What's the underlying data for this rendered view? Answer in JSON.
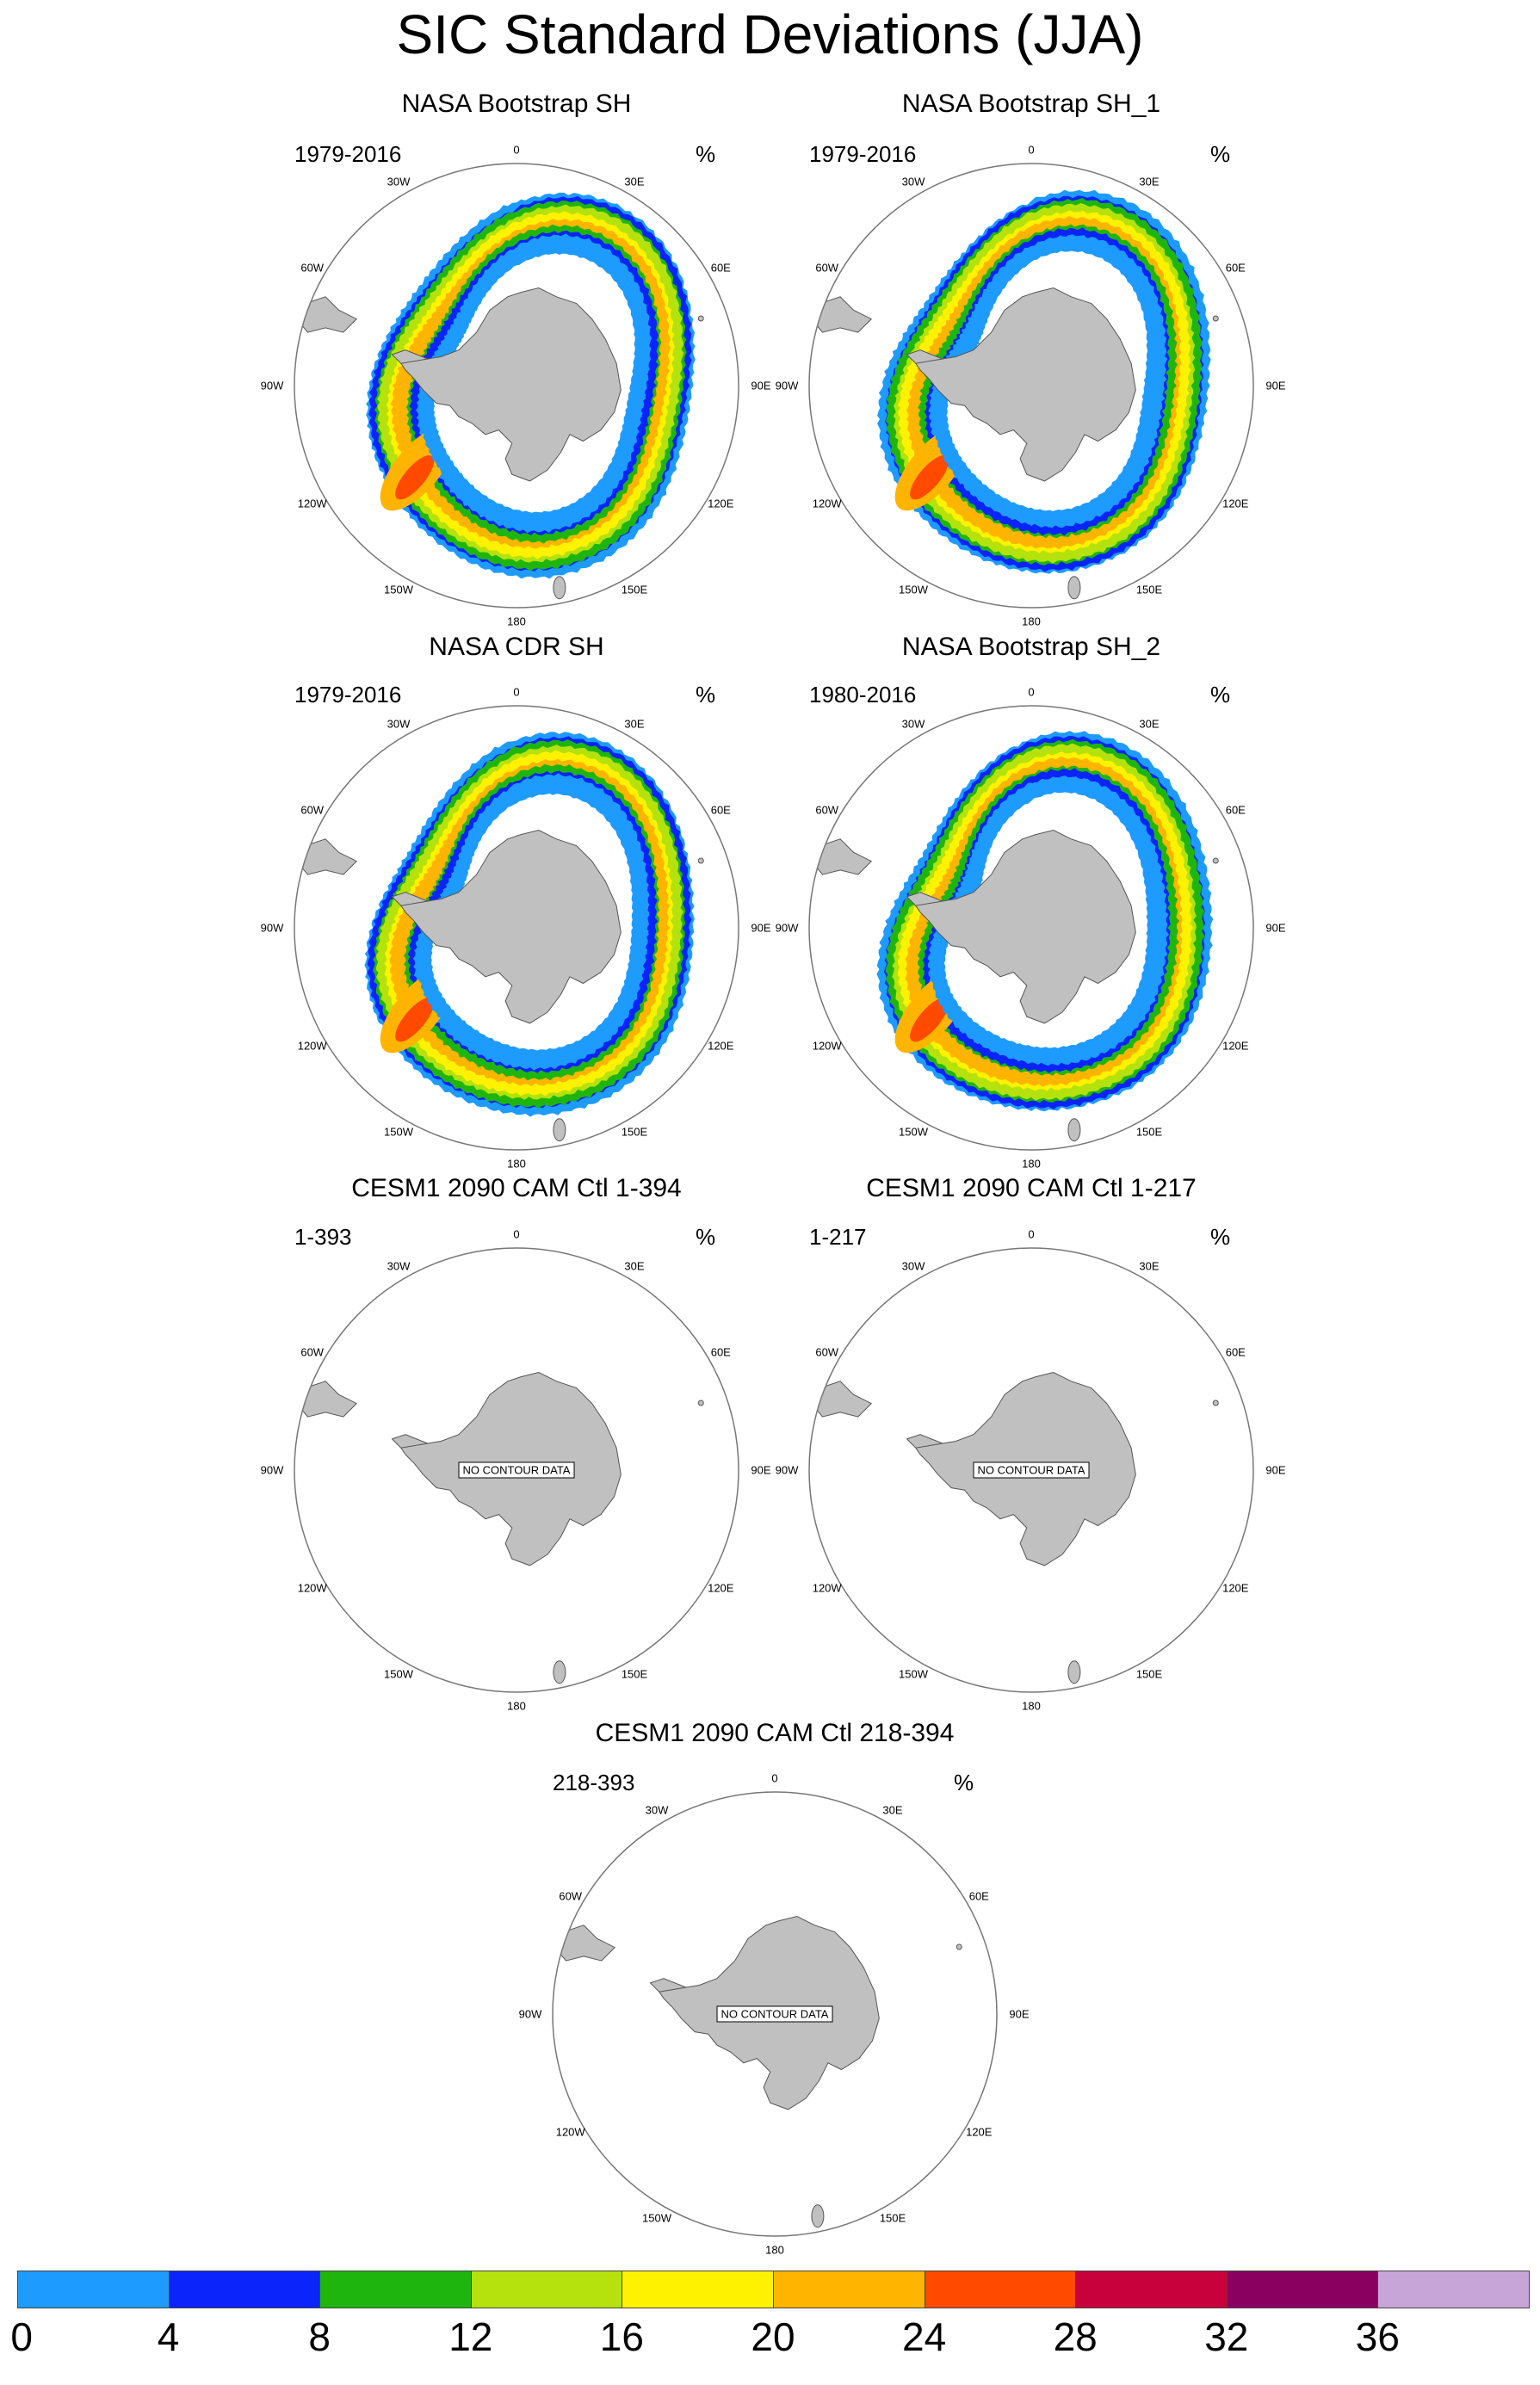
{
  "title": "SIC Standard Deviations (JJA)",
  "panels": [
    {
      "id": "bootstrap_sh",
      "title": "NASA Bootstrap SH",
      "left": "1979-2016",
      "right": "%",
      "has_data": true,
      "variant": 0
    },
    {
      "id": "bootstrap_sh_1",
      "title": "NASA Bootstrap SH_1",
      "left": "1979-2016",
      "right": "%",
      "has_data": true,
      "variant": 1
    },
    {
      "id": "cdr_sh",
      "title": "NASA CDR SH",
      "left": "1979-2016",
      "right": "%",
      "has_data": true,
      "variant": 2
    },
    {
      "id": "bootstrap_sh_2",
      "title": "NASA Bootstrap SH_2",
      "left": "1980-2016",
      "right": "%",
      "has_data": true,
      "variant": 3
    },
    {
      "id": "cesm_1_394",
      "title": "CESM1 2090 CAM Ctl 1-394",
      "left": "1-393",
      "right": "%",
      "has_data": false,
      "message": "NO CONTOUR DATA"
    },
    {
      "id": "cesm_1_217",
      "title": "CESM1 2090 CAM Ctl 1-217",
      "left": "1-217",
      "right": "%",
      "has_data": false,
      "message": "NO CONTOUR DATA"
    },
    {
      "id": "cesm_218_394",
      "title": "CESM1 2090 CAM Ctl 218-394",
      "left": "218-393",
      "right": "%",
      "has_data": false,
      "message": "NO CONTOUR DATA"
    }
  ],
  "longitude_labels": [
    "0",
    "30E",
    "60E",
    "90E",
    "120E",
    "150E",
    "180",
    "150W",
    "120W",
    "90W",
    "60W",
    "30W"
  ],
  "colorbar": {
    "colors": [
      "#1e9bff",
      "#0b24fb",
      "#1fb50f",
      "#b5e20c",
      "#fff200",
      "#ffb400",
      "#ff4a00",
      "#c8003c",
      "#8a0061",
      "#c8a5d8"
    ],
    "ticks": [
      "0",
      "4",
      "8",
      "12",
      "16",
      "20",
      "24",
      "28",
      "32",
      "36"
    ]
  }
}
